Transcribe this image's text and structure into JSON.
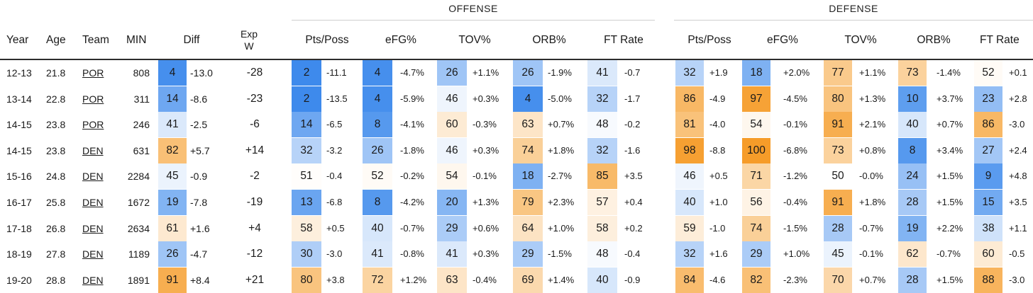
{
  "groups": {
    "offense": "OFFENSE",
    "defense": "DEFENSE"
  },
  "headers": {
    "year": "Year",
    "age": "Age",
    "team": "Team",
    "min": "MIN",
    "diff": "Diff",
    "exp_w_line1": "Exp",
    "exp_w_line2": "W",
    "off_pts_poss": "Pts/Poss",
    "off_efg": "eFG%",
    "off_tov": "TOV%",
    "off_orb": "ORB%",
    "off_ft_rate": "FT Rate",
    "def_pts_poss": "Pts/Poss",
    "def_efg": "eFG%",
    "def_tov": "TOV%",
    "def_orb": "ORB%",
    "def_ft_rate": "FT Rate"
  },
  "rows": [
    {
      "year": "12-13",
      "age": "21.8",
      "team": "POR",
      "min": "808",
      "diff": {
        "rank": "4",
        "val": "-13.0"
      },
      "exp_w": "-28",
      "off": [
        {
          "rank": "2",
          "val": "-11.1"
        },
        {
          "rank": "4",
          "val": "-4.7%"
        },
        {
          "rank": "26",
          "val": "+1.1%"
        },
        {
          "rank": "26",
          "val": "-1.9%"
        },
        {
          "rank": "41",
          "val": "-0.7"
        }
      ],
      "def": [
        {
          "rank": "32",
          "val": "+1.9"
        },
        {
          "rank": "18",
          "val": "+2.0%"
        },
        {
          "rank": "77",
          "val": "+1.1%"
        },
        {
          "rank": "73",
          "val": "-1.4%"
        },
        {
          "rank": "52",
          "val": "+0.1"
        }
      ]
    },
    {
      "year": "13-14",
      "age": "22.8",
      "team": "POR",
      "min": "311",
      "diff": {
        "rank": "14",
        "val": "-8.6"
      },
      "exp_w": "-23",
      "off": [
        {
          "rank": "2",
          "val": "-13.5"
        },
        {
          "rank": "4",
          "val": "-5.9%"
        },
        {
          "rank": "46",
          "val": "+0.3%"
        },
        {
          "rank": "4",
          "val": "-5.0%"
        },
        {
          "rank": "32",
          "val": "-1.7"
        }
      ],
      "def": [
        {
          "rank": "86",
          "val": "-4.9"
        },
        {
          "rank": "97",
          "val": "-4.5%"
        },
        {
          "rank": "80",
          "val": "+1.3%"
        },
        {
          "rank": "10",
          "val": "+3.7%"
        },
        {
          "rank": "23",
          "val": "+2.8"
        }
      ]
    },
    {
      "year": "14-15",
      "age": "23.8",
      "team": "POR",
      "min": "246",
      "diff": {
        "rank": "41",
        "val": "-2.5"
      },
      "exp_w": "-6",
      "off": [
        {
          "rank": "14",
          "val": "-6.5"
        },
        {
          "rank": "8",
          "val": "-4.1%"
        },
        {
          "rank": "60",
          "val": "-0.3%"
        },
        {
          "rank": "63",
          "val": "+0.7%"
        },
        {
          "rank": "48",
          "val": "-0.2"
        }
      ],
      "def": [
        {
          "rank": "81",
          "val": "-4.0"
        },
        {
          "rank": "54",
          "val": "-0.1%"
        },
        {
          "rank": "91",
          "val": "+2.1%"
        },
        {
          "rank": "40",
          "val": "+0.7%"
        },
        {
          "rank": "86",
          "val": "-3.0"
        }
      ]
    },
    {
      "year": "14-15",
      "age": "23.8",
      "team": "DEN",
      "min": "631",
      "diff": {
        "rank": "82",
        "val": "+5.7"
      },
      "exp_w": "+14",
      "off": [
        {
          "rank": "32",
          "val": "-3.2"
        },
        {
          "rank": "26",
          "val": "-1.8%"
        },
        {
          "rank": "46",
          "val": "+0.3%"
        },
        {
          "rank": "74",
          "val": "+1.8%"
        },
        {
          "rank": "32",
          "val": "-1.6"
        }
      ],
      "def": [
        {
          "rank": "98",
          "val": "-8.8"
        },
        {
          "rank": "100",
          "val": "-6.8%"
        },
        {
          "rank": "73",
          "val": "+0.8%"
        },
        {
          "rank": "8",
          "val": "+3.4%"
        },
        {
          "rank": "27",
          "val": "+2.4"
        }
      ]
    },
    {
      "year": "15-16",
      "age": "24.8",
      "team": "DEN",
      "min": "2284",
      "diff": {
        "rank": "45",
        "val": "-0.9"
      },
      "exp_w": "-2",
      "off": [
        {
          "rank": "51",
          "val": "-0.4"
        },
        {
          "rank": "52",
          "val": "-0.2%"
        },
        {
          "rank": "54",
          "val": "-0.1%"
        },
        {
          "rank": "18",
          "val": "-2.7%"
        },
        {
          "rank": "85",
          "val": "+3.5"
        }
      ],
      "def": [
        {
          "rank": "46",
          "val": "+0.5"
        },
        {
          "rank": "71",
          "val": "-1.2%"
        },
        {
          "rank": "50",
          "val": "-0.0%"
        },
        {
          "rank": "24",
          "val": "+1.5%"
        },
        {
          "rank": "9",
          "val": "+4.8"
        }
      ]
    },
    {
      "year": "16-17",
      "age": "25.8",
      "team": "DEN",
      "min": "1672",
      "diff": {
        "rank": "19",
        "val": "-7.8"
      },
      "exp_w": "-19",
      "off": [
        {
          "rank": "13",
          "val": "-6.8"
        },
        {
          "rank": "8",
          "val": "-4.2%"
        },
        {
          "rank": "20",
          "val": "+1.3%"
        },
        {
          "rank": "79",
          "val": "+2.3%"
        },
        {
          "rank": "57",
          "val": "+0.4"
        }
      ],
      "def": [
        {
          "rank": "40",
          "val": "+1.0"
        },
        {
          "rank": "56",
          "val": "-0.4%"
        },
        {
          "rank": "91",
          "val": "+1.8%"
        },
        {
          "rank": "28",
          "val": "+1.5%"
        },
        {
          "rank": "15",
          "val": "+3.5"
        }
      ]
    },
    {
      "year": "17-18",
      "age": "26.8",
      "team": "DEN",
      "min": "2634",
      "diff": {
        "rank": "61",
        "val": "+1.6"
      },
      "exp_w": "+4",
      "off": [
        {
          "rank": "58",
          "val": "+0.5"
        },
        {
          "rank": "40",
          "val": "-0.7%"
        },
        {
          "rank": "29",
          "val": "+0.6%"
        },
        {
          "rank": "64",
          "val": "+1.0%"
        },
        {
          "rank": "58",
          "val": "+0.2"
        }
      ],
      "def": [
        {
          "rank": "59",
          "val": "-1.0"
        },
        {
          "rank": "74",
          "val": "-1.5%"
        },
        {
          "rank": "28",
          "val": "-0.7%"
        },
        {
          "rank": "19",
          "val": "+2.2%"
        },
        {
          "rank": "38",
          "val": "+1.1"
        }
      ]
    },
    {
      "year": "18-19",
      "age": "27.8",
      "team": "DEN",
      "min": "1189",
      "diff": {
        "rank": "26",
        "val": "-4.7"
      },
      "exp_w": "-12",
      "off": [
        {
          "rank": "30",
          "val": "-3.0"
        },
        {
          "rank": "41",
          "val": "-0.8%"
        },
        {
          "rank": "41",
          "val": "+0.3%"
        },
        {
          "rank": "29",
          "val": "-1.5%"
        },
        {
          "rank": "48",
          "val": "-0.4"
        }
      ],
      "def": [
        {
          "rank": "32",
          "val": "+1.6"
        },
        {
          "rank": "29",
          "val": "+1.0%"
        },
        {
          "rank": "45",
          "val": "-0.1%"
        },
        {
          "rank": "62",
          "val": "-0.7%"
        },
        {
          "rank": "60",
          "val": "-0.5"
        }
      ]
    },
    {
      "year": "19-20",
      "age": "28.8",
      "team": "DEN",
      "min": "1891",
      "diff": {
        "rank": "91",
        "val": "+8.4"
      },
      "exp_w": "+21",
      "off": [
        {
          "rank": "80",
          "val": "+3.8"
        },
        {
          "rank": "72",
          "val": "+1.2%"
        },
        {
          "rank": "63",
          "val": "-0.4%"
        },
        {
          "rank": "69",
          "val": "+1.4%"
        },
        {
          "rank": "40",
          "val": "-0.9"
        }
      ],
      "def": [
        {
          "rank": "84",
          "val": "-4.6"
        },
        {
          "rank": "82",
          "val": "-2.3%"
        },
        {
          "rank": "70",
          "val": "+0.7%"
        },
        {
          "rank": "28",
          "val": "+1.5%"
        },
        {
          "rank": "88",
          "val": "-3.0"
        }
      ]
    }
  ]
}
